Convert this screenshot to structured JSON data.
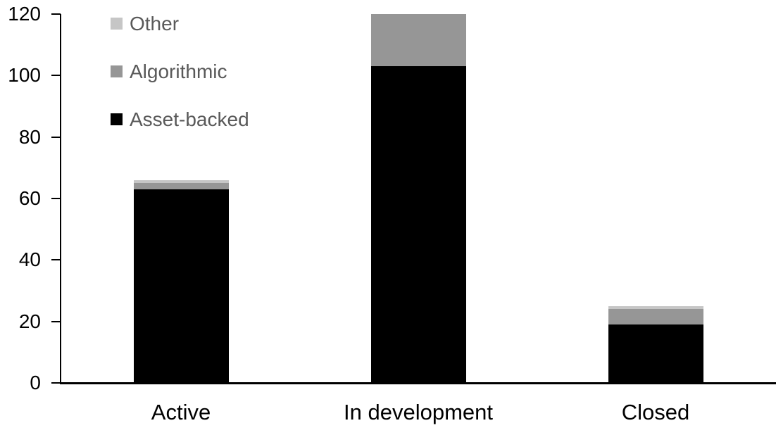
{
  "chart_data": {
    "type": "bar",
    "stacked": true,
    "title": "",
    "categories": [
      "Active",
      "In development",
      "Closed"
    ],
    "series": [
      {
        "name": "Asset-backed",
        "color": "#000000",
        "values": [
          63,
          103,
          19
        ]
      },
      {
        "name": "Algorithmic",
        "color": "#969696",
        "values": [
          2,
          17,
          5
        ]
      },
      {
        "name": "Other",
        "color": "#C6C6C6",
        "values": [
          1,
          0,
          1
        ]
      }
    ],
    "y_axis": {
      "min": 0,
      "max": 120,
      "tick_step": 20,
      "tick_labels": [
        "0",
        "20",
        "40",
        "60",
        "80",
        "100",
        "120"
      ],
      "text_color": "#000000"
    },
    "x_axis": {
      "labels": [
        "Active",
        "In development",
        "Closed"
      ],
      "text_color": "#000000"
    },
    "legend": {
      "position": "top-left",
      "entries": [
        "Other",
        "Algorithmic",
        "Asset-backed"
      ],
      "text_color": "#595959"
    },
    "grid": false,
    "axis_color": "#000000",
    "background": "#FFFFFF"
  }
}
